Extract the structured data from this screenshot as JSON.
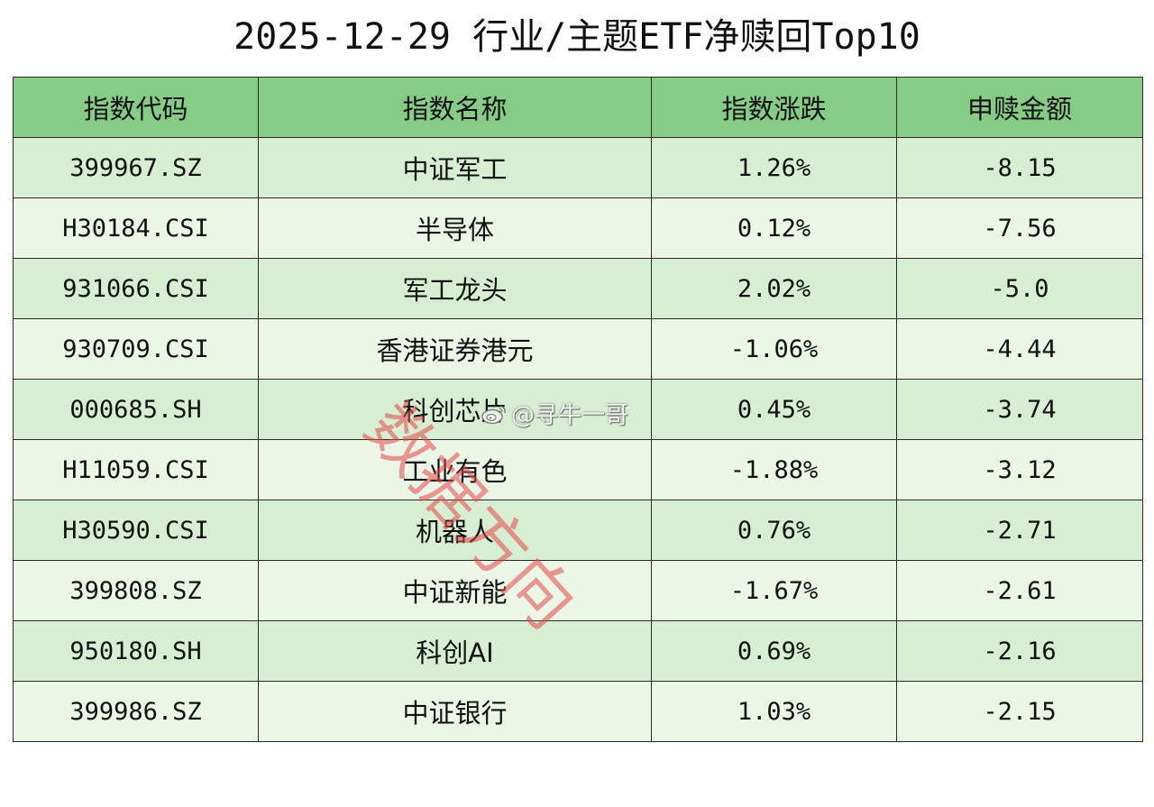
{
  "title": "2025-12-29 行业/主题ETF净赎回Top10",
  "table": {
    "headers": [
      "指数代码",
      "指数名称",
      "指数涨跌",
      "申赎金额"
    ],
    "rows": [
      {
        "code": "399967.SZ",
        "name": "中证军工",
        "change": "1.26%",
        "amount": "-8.15"
      },
      {
        "code": "H30184.CSI",
        "name": "半导体",
        "change": "0.12%",
        "amount": "-7.56"
      },
      {
        "code": "931066.CSI",
        "name": "军工龙头",
        "change": "2.02%",
        "amount": "-5.0"
      },
      {
        "code": "930709.CSI",
        "name": "香港证券港元",
        "change": "-1.06%",
        "amount": "-4.44"
      },
      {
        "code": "000685.SH",
        "name": "科创芯片",
        "change": "0.45%",
        "amount": "-3.74"
      },
      {
        "code": "H11059.CSI",
        "name": "工业有色",
        "change": "-1.88%",
        "amount": "-3.12"
      },
      {
        "code": "H30590.CSI",
        "name": "机器人",
        "change": "0.76%",
        "amount": "-2.71"
      },
      {
        "code": "399808.SZ",
        "name": "中证新能",
        "change": "-1.67%",
        "amount": "-2.61"
      },
      {
        "code": "950180.SH",
        "name": "科创AI",
        "change": "0.69%",
        "amount": "-2.16"
      },
      {
        "code": "399986.SZ",
        "name": "中证银行",
        "change": "1.03%",
        "amount": "-2.15"
      }
    ]
  },
  "colors": {
    "header_bg": "#86cb86",
    "row_odd_bg": "#d8eed3",
    "row_even_bg": "#ebf6e7",
    "watermark_red": "#e44646"
  },
  "watermark": {
    "text": "数据方向",
    "handle": "@寻牛一哥",
    "logo_icon": "weibo-logo-icon"
  }
}
